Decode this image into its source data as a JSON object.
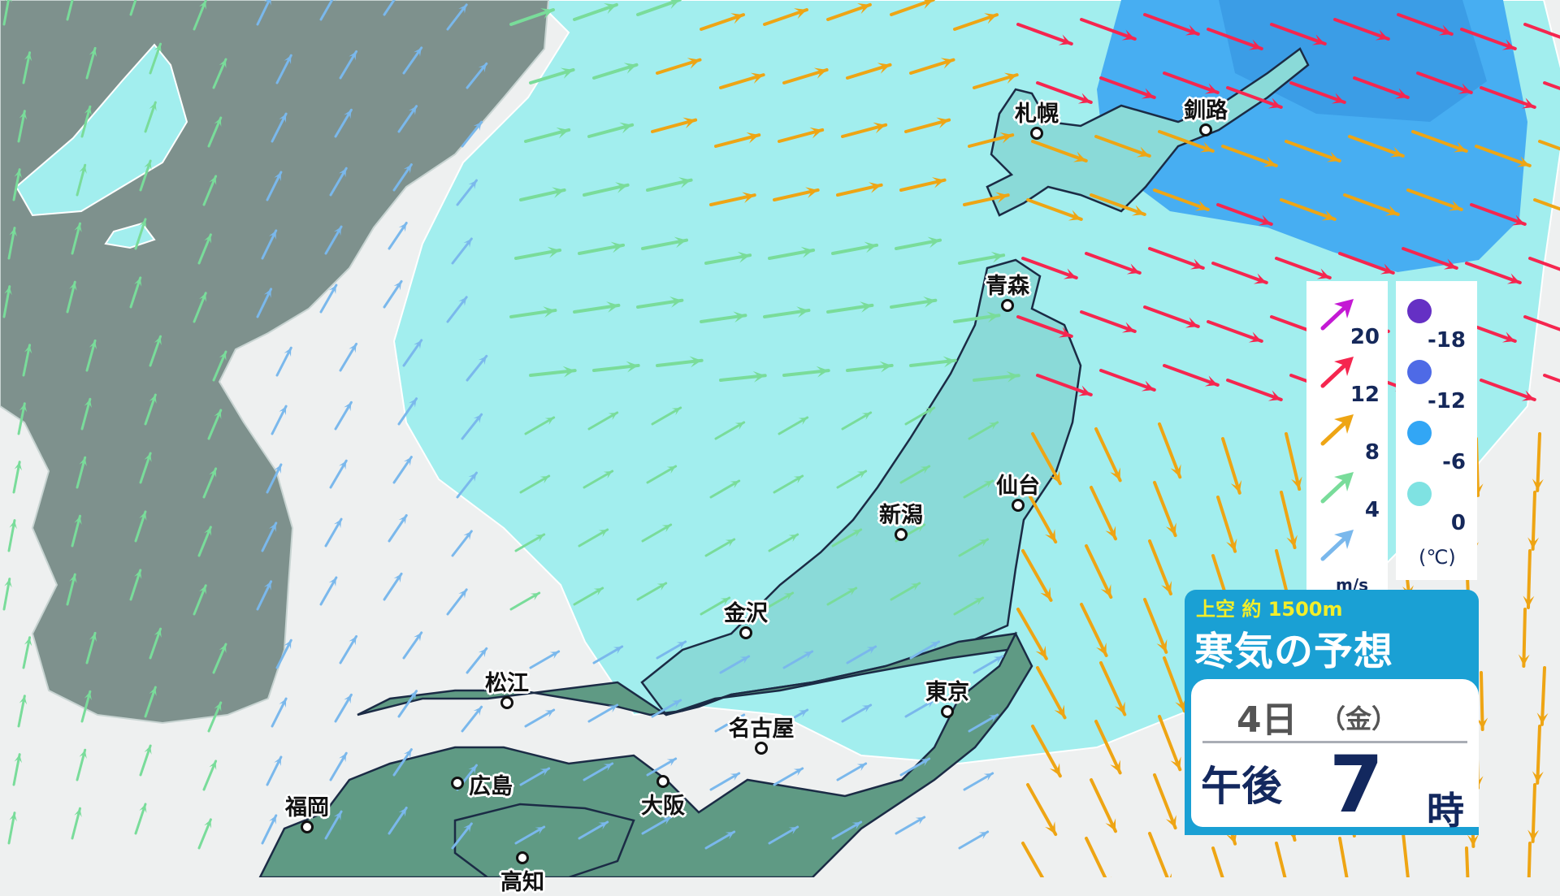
{
  "cities": [
    {
      "name": "札幌",
      "label_pos": "above"
    },
    {
      "name": "釧路",
      "label_pos": "above"
    },
    {
      "name": "青森",
      "label_pos": "above"
    },
    {
      "name": "仙台",
      "label_pos": "above"
    },
    {
      "name": "新潟",
      "label_pos": "above"
    },
    {
      "name": "金沢",
      "label_pos": "above"
    },
    {
      "name": "東京",
      "label_pos": "above"
    },
    {
      "name": "名古屋",
      "label_pos": "above"
    },
    {
      "name": "大阪",
      "label_pos": "below"
    },
    {
      "name": "広島",
      "label_pos": "right"
    },
    {
      "name": "松江",
      "label_pos": "above"
    },
    {
      "name": "福岡",
      "label_pos": "above"
    },
    {
      "name": "高知",
      "label_pos": "below"
    }
  ],
  "legend": {
    "wind": {
      "unit": "m/s",
      "items": [
        {
          "value": "20",
          "color": "#c419d4"
        },
        {
          "value": "12",
          "color": "#f5264f"
        },
        {
          "value": "8",
          "color": "#eea514"
        },
        {
          "value": "4",
          "color": "#79dc9a"
        },
        {
          "value": "",
          "color": "#7ab8ec"
        }
      ]
    },
    "temperature": {
      "unit": "(℃)",
      "items": [
        {
          "value": "-18",
          "color": "#6530c4"
        },
        {
          "value": "-12",
          "color": "#4e6ae6"
        },
        {
          "value": "-6",
          "color": "#32a6f5"
        },
        {
          "value": "0",
          "color": "#7fe2e2"
        }
      ]
    }
  },
  "info": {
    "subtitle": "上空 約 1500m",
    "title": "寒気の予想",
    "date": "4日",
    "weekday": "（金）",
    "ampm": "午後",
    "hour": "7",
    "hour_unit": "時"
  },
  "colors": {
    "sea": "#eef0f0",
    "cold_0": "#a2eeee",
    "cold_minus6": "#47aef2",
    "land_warm": "#5f9a84",
    "land_cold": "#8adad8",
    "continent": "#7e918d"
  }
}
